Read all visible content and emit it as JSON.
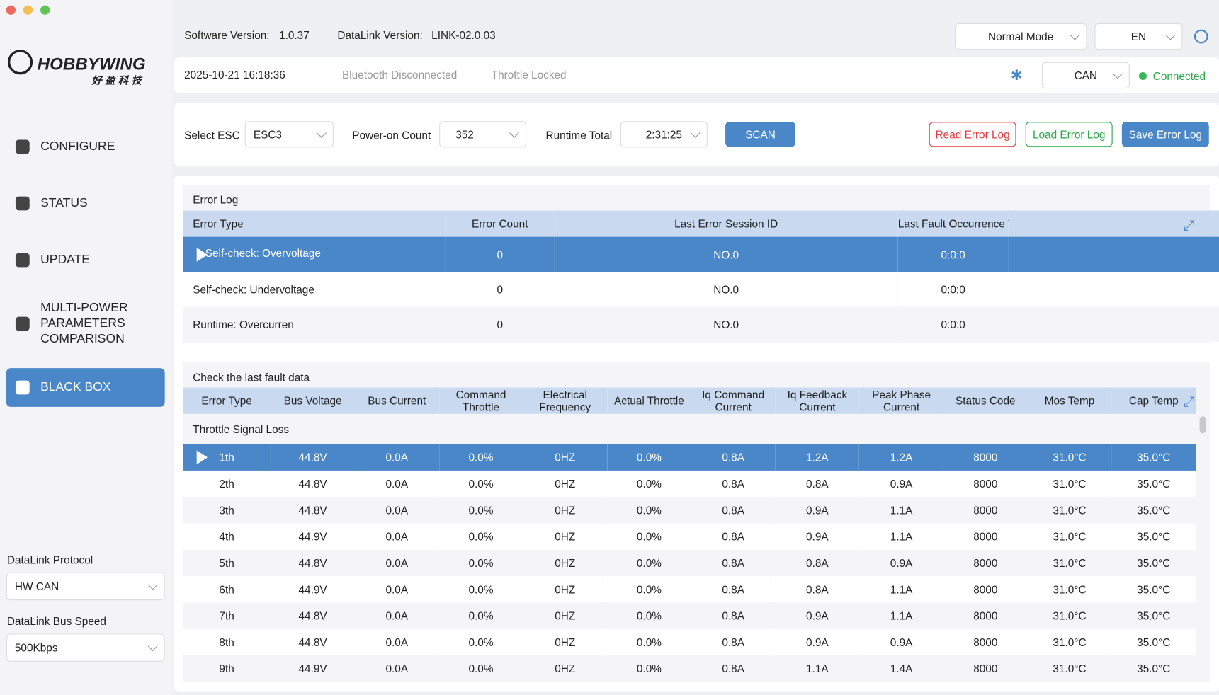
{
  "header": {
    "software_version_label": "Software Version:",
    "software_version": "1.0.37",
    "datalink_version_label": "DataLink Version:",
    "datalink_version": "LINK-02.0.03",
    "mode": "Normal Mode",
    "language": "EN",
    "datetime": "2025-10-21 16:18:36",
    "bluetooth_status": "Bluetooth Disconnected",
    "throttle_status": "Throttle Locked",
    "bus": "CAN",
    "connection": "Connected"
  },
  "logo": {
    "brand": "HOBBYWING",
    "brand_cn": "好盈科技"
  },
  "nav": [
    {
      "label": "CONFIGURE"
    },
    {
      "label": "STATUS"
    },
    {
      "label": "UPDATE"
    },
    {
      "label": "MULTI-POWER PARAMETERS COMPARISON"
    },
    {
      "label": "BLACK BOX",
      "active": true
    }
  ],
  "sidebar_settings": [
    {
      "label": "DataLink Protocol",
      "value": "HW CAN"
    },
    {
      "label": "DataLink Bus Speed",
      "value": "500Kbps"
    }
  ],
  "toolbar": {
    "select_esc_label": "Select ESC",
    "select_esc": "ESC3",
    "power_on_count_label": "Power-on Count",
    "power_on_count": "352",
    "runtime_total_label": "Runtime Total",
    "runtime_total": "2:31:25",
    "scan": "SCAN",
    "read_error_log": "Read Error Log",
    "load_error_log": "Load Error Log",
    "save_error_log": "Save Error Log"
  },
  "error_log": {
    "title": "Error Log",
    "columns": [
      "Error Type",
      "Error Count",
      "Last Error Session ID",
      "Last Fault Occurrence Time"
    ],
    "rows": [
      [
        "Self-check: Overvoltage",
        "0",
        "NO.0",
        "0:0:0"
      ],
      [
        "Self-check: Undervoltage",
        "0",
        "NO.0",
        "0:0:0"
      ],
      [
        "Runtime: Overcurren",
        "0",
        "NO.0",
        "0:0:0"
      ]
    ]
  },
  "fault_data": {
    "title": "Check the last fault data",
    "columns": [
      "Error Type",
      "Bus Voltage",
      "Bus Current",
      "Command Throttle",
      "Electrical Frequency",
      "Actual Throttle",
      "Iq Command Current",
      "Iq Feedback Current",
      "Peak Phase Current",
      "Status Code",
      "Mos Temp",
      "Cap Temp"
    ],
    "group": "Throttle Signal Loss",
    "rows": [
      [
        "1th",
        "44.8V",
        "0.0A",
        "0.0%",
        "0HZ",
        "0.0%",
        "0.8A",
        "1.2A",
        "1.2A",
        "8000",
        "31.0°C",
        "35.0°C"
      ],
      [
        "2th",
        "44.8V",
        "0.0A",
        "0.0%",
        "0HZ",
        "0.0%",
        "0.8A",
        "0.8A",
        "0.9A",
        "8000",
        "31.0°C",
        "35.0°C"
      ],
      [
        "3th",
        "44.8V",
        "0.0A",
        "0.0%",
        "0HZ",
        "0.0%",
        "0.8A",
        "0.9A",
        "1.1A",
        "8000",
        "31.0°C",
        "35.0°C"
      ],
      [
        "4th",
        "44.9V",
        "0.0A",
        "0.0%",
        "0HZ",
        "0.0%",
        "0.8A",
        "0.9A",
        "1.1A",
        "8000",
        "31.0°C",
        "35.0°C"
      ],
      [
        "5th",
        "44.8V",
        "0.0A",
        "0.0%",
        "0HZ",
        "0.0%",
        "0.8A",
        "0.8A",
        "0.9A",
        "8000",
        "31.0°C",
        "35.0°C"
      ],
      [
        "6th",
        "44.9V",
        "0.0A",
        "0.0%",
        "0HZ",
        "0.0%",
        "0.8A",
        "0.8A",
        "1.1A",
        "8000",
        "31.0°C",
        "35.0°C"
      ],
      [
        "7th",
        "44.8V",
        "0.0A",
        "0.0%",
        "0HZ",
        "0.0%",
        "0.8A",
        "0.9A",
        "1.1A",
        "8000",
        "31.0°C",
        "35.0°C"
      ],
      [
        "8th",
        "44.8V",
        "0.0A",
        "0.0%",
        "0HZ",
        "0.0%",
        "0.8A",
        "0.9A",
        "0.9A",
        "8000",
        "31.0°C",
        "35.0°C"
      ],
      [
        "9th",
        "44.9V",
        "0.0A",
        "0.0%",
        "0HZ",
        "0.0%",
        "0.8A",
        "1.1A",
        "1.4A",
        "8000",
        "31.0°C",
        "35.0°C"
      ]
    ]
  }
}
